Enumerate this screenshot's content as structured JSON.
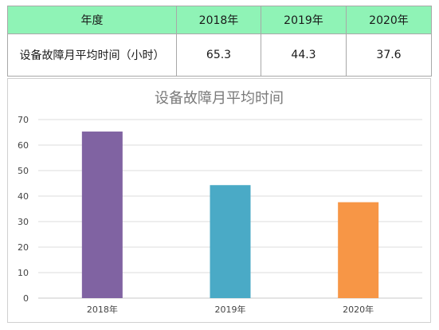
{
  "table": {
    "header": [
      "年度",
      "2018年",
      "2019年",
      "2020年"
    ],
    "row": [
      "设备故障月平均时间（小时）",
      "65.3",
      "44.3",
      "37.6"
    ]
  },
  "chart_data": {
    "type": "bar",
    "title": "设备故障月平均时间",
    "categories": [
      "2018年",
      "2019年",
      "2020年"
    ],
    "values": [
      65.3,
      44.3,
      37.6
    ],
    "colors": [
      "#8063a2",
      "#4aaac6",
      "#f79646"
    ],
    "ylim": [
      0,
      70
    ],
    "yticks": [
      0,
      10,
      20,
      30,
      40,
      50,
      60,
      70
    ],
    "grid": true,
    "legend": "none"
  }
}
